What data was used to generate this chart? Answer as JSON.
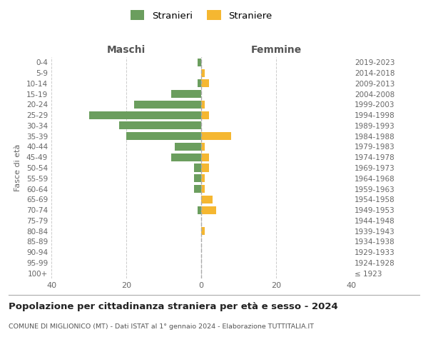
{
  "age_groups": [
    "100+",
    "95-99",
    "90-94",
    "85-89",
    "80-84",
    "75-79",
    "70-74",
    "65-69",
    "60-64",
    "55-59",
    "50-54",
    "45-49",
    "40-44",
    "35-39",
    "30-34",
    "25-29",
    "20-24",
    "15-19",
    "10-14",
    "5-9",
    "0-4"
  ],
  "birth_years": [
    "≤ 1923",
    "1924-1928",
    "1929-1933",
    "1934-1938",
    "1939-1943",
    "1944-1948",
    "1949-1953",
    "1954-1958",
    "1959-1963",
    "1964-1968",
    "1969-1973",
    "1974-1978",
    "1979-1983",
    "1984-1988",
    "1989-1993",
    "1994-1998",
    "1999-2003",
    "2004-2008",
    "2009-2013",
    "2014-2018",
    "2019-2023"
  ],
  "maschi": [
    0,
    0,
    0,
    0,
    0,
    0,
    1,
    0,
    2,
    2,
    2,
    8,
    7,
    20,
    22,
    30,
    18,
    8,
    1,
    0,
    1
  ],
  "femmine": [
    0,
    0,
    0,
    0,
    1,
    0,
    4,
    3,
    1,
    1,
    2,
    2,
    1,
    8,
    0,
    2,
    1,
    0,
    2,
    1,
    0
  ],
  "color_maschi": "#6b9e5e",
  "color_femmine": "#f5b731",
  "title": "Popolazione per cittadinanza straniera per età e sesso - 2024",
  "subtitle": "COMUNE DI MIGLIONICO (MT) - Dati ISTAT al 1° gennaio 2024 - Elaborazione TUTTITALIA.IT",
  "ylabel_left": "Fasce di età",
  "xlabel_left": "Maschi",
  "xlabel_top_right": "Femmine",
  "legend_maschi": "Stranieri",
  "legend_femmine": "Straniere",
  "xlim": 40,
  "background_color": "#ffffff",
  "grid_color": "#cccccc"
}
